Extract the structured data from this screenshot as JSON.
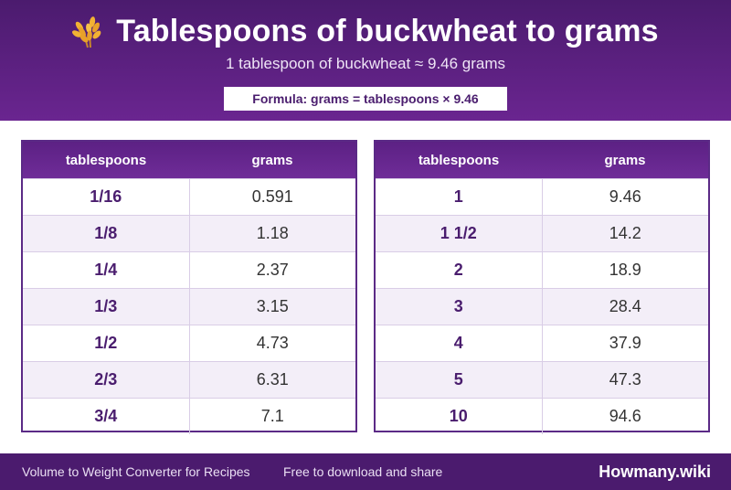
{
  "header": {
    "icon": "wheat-icon",
    "title": "Tablespoons of buckwheat to grams",
    "subtitle": "1 tablespoon of buckwheat ≈ 9.46 grams",
    "formula": "Formula: grams = tablespoons × 9.46"
  },
  "tables": [
    {
      "columns": [
        "tablespoons",
        "grams"
      ],
      "rows": [
        [
          "1/16",
          "0.591"
        ],
        [
          "1/8",
          "1.18"
        ],
        [
          "1/4",
          "2.37"
        ],
        [
          "1/3",
          "3.15"
        ],
        [
          "1/2",
          "4.73"
        ],
        [
          "2/3",
          "6.31"
        ],
        [
          "3/4",
          "7.1"
        ]
      ]
    },
    {
      "columns": [
        "tablespoons",
        "grams"
      ],
      "rows": [
        [
          "1",
          "9.46"
        ],
        [
          "1 1/2",
          "14.2"
        ],
        [
          "2",
          "18.9"
        ],
        [
          "3",
          "28.4"
        ],
        [
          "4",
          "37.9"
        ],
        [
          "5",
          "47.3"
        ],
        [
          "10",
          "94.6"
        ]
      ]
    }
  ],
  "footer": {
    "left": "Volume to Weight Converter for Recipes",
    "middle": "Free to download and share",
    "brand": "Howmany.wiki"
  },
  "colors": {
    "header_bg": "#4b1b6e",
    "accent": "#5b2a86",
    "row_alt": "#f3eef8"
  }
}
